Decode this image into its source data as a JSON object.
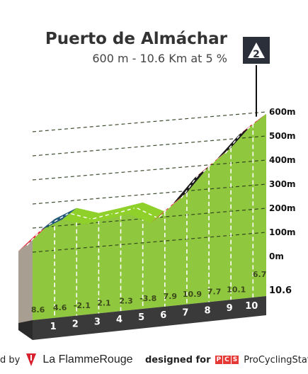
{
  "header": {
    "title": "Puerto de Almáchar",
    "subtitle": "600 m - 10.6 Km at 5 %"
  },
  "badge": {
    "label": "2",
    "icon": "mountain-category-icon"
  },
  "chart_data": {
    "type": "area",
    "y_unit": "m",
    "y_ticks": [
      "600m",
      "500m",
      "400m",
      "300m",
      "200m",
      "100m",
      "0m"
    ],
    "y_tick_values": [
      600,
      500,
      400,
      300,
      200,
      100,
      0
    ],
    "x_ticks": [
      "1",
      "2",
      "3",
      "4",
      "5",
      "6",
      "7",
      "8",
      "9",
      "10"
    ],
    "x_end_label": "10.6",
    "x_range": [
      0,
      10.6
    ],
    "segment_gradients": [
      "8.6",
      "4.6",
      "-2.1",
      "2.1",
      "2.3",
      "-3.8",
      "7.9",
      "10.9",
      "7.7",
      "10.1",
      "6.7"
    ],
    "elevation_profile": {
      "x": [
        0,
        1,
        2,
        3,
        4,
        5,
        6,
        7,
        8,
        9,
        10,
        10.6
      ],
      "y": [
        69,
        155,
        201,
        180,
        201,
        224,
        186,
        265,
        374,
        451,
        552,
        592
      ]
    },
    "segment_colors": [
      "#e8283c",
      "#23587a",
      "#8fd12a",
      "#8fd12a",
      "#8fd12a",
      "#8fd12a",
      "#e8283c",
      "#1a1a1a",
      "#e8283c",
      "#1a1a1a",
      "#e8283c"
    ],
    "colors": {
      "fill": "#8fc73e",
      "base": "#3a3a3a",
      "side": "#a89e91",
      "grid": "#2a3b1a",
      "tick_label": "#111111"
    }
  },
  "footer": {
    "left_prefix": "d by",
    "left_brand": "La FlammeRouge",
    "right_prefix": "designed for",
    "pcs_letters": [
      "P",
      "C",
      "S"
    ],
    "right_brand": "ProCyclingStats"
  }
}
